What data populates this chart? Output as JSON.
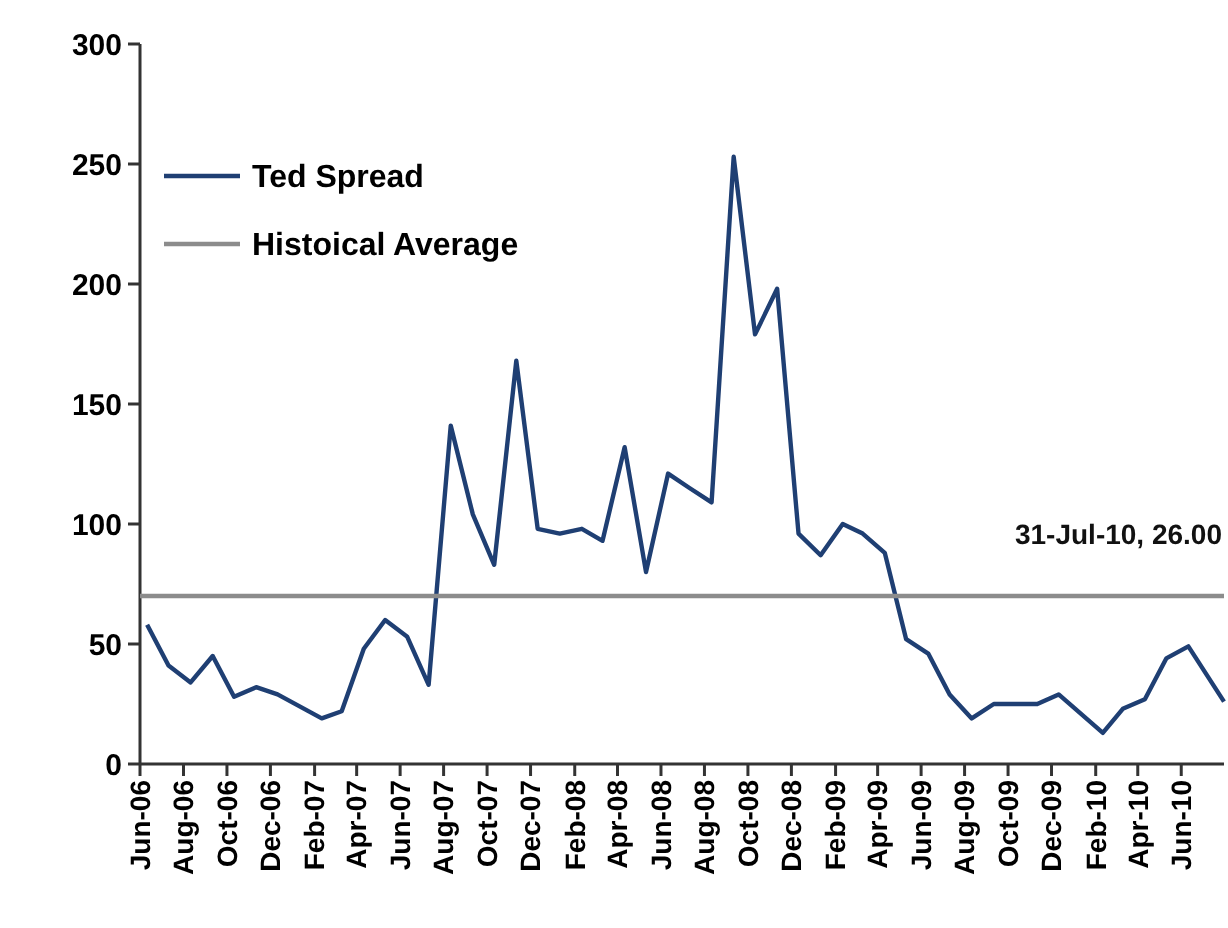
{
  "chart_data": {
    "type": "line",
    "x": [
      "2006-06-11",
      "2006-07-11",
      "2006-08-11",
      "2006-09-11",
      "2006-10-11",
      "2006-11-11",
      "2006-12-11",
      "2007-01-11",
      "2007-02-11",
      "2007-03-11",
      "2007-04-11",
      "2007-05-11",
      "2007-06-11",
      "2007-07-11",
      "2007-08-11",
      "2007-09-11",
      "2007-10-11",
      "2007-11-11",
      "2007-12-11",
      "2008-01-11",
      "2008-02-11",
      "2008-03-11",
      "2008-04-11",
      "2008-05-11",
      "2008-06-11",
      "2008-07-11",
      "2008-08-11",
      "2008-09-11",
      "2008-10-11",
      "2008-11-11",
      "2008-12-11",
      "2009-01-11",
      "2009-02-11",
      "2009-03-11",
      "2009-04-11",
      "2009-05-11",
      "2009-06-11",
      "2009-07-11",
      "2009-08-11",
      "2009-09-11",
      "2009-10-11",
      "2009-11-11",
      "2009-12-11",
      "2010-01-11",
      "2010-02-11",
      "2010-03-11",
      "2010-04-11",
      "2010-05-11",
      "2010-06-11",
      "2010-07-31"
    ],
    "series": [
      {
        "name": "Ted Spread",
        "color": "#1f3f73",
        "values": [
          58,
          41,
          34,
          45,
          28,
          32,
          29,
          24,
          19,
          22,
          48,
          60,
          53,
          33,
          141,
          104,
          83,
          168,
          98,
          96,
          98,
          93,
          132,
          80,
          121,
          115,
          109,
          253,
          179,
          198,
          96,
          87,
          100,
          96,
          88,
          52,
          46,
          29,
          19,
          25,
          25,
          25,
          29,
          21,
          13,
          23,
          27,
          44,
          49,
          26
        ]
      },
      {
        "name": "Histoical Average",
        "color": "#8c8c8c",
        "x": [
          "2006-06-01",
          "2010-07-31"
        ],
        "values": [
          70,
          70
        ]
      }
    ],
    "annotations": [
      "31-Jul-10, 26.00"
    ],
    "xlim": [
      "2006-06-01",
      "2010-07-31"
    ],
    "xticks": [
      {
        "value": "2006-06-01",
        "label": "Jun-06"
      },
      {
        "value": "2006-08-01",
        "label": "Aug-06"
      },
      {
        "value": "2006-10-01",
        "label": "Oct-06"
      },
      {
        "value": "2006-12-01",
        "label": "Dec-06"
      },
      {
        "value": "2007-02-01",
        "label": "Feb-07"
      },
      {
        "value": "2007-04-01",
        "label": "Apr-07"
      },
      {
        "value": "2007-06-01",
        "label": "Jun-07"
      },
      {
        "value": "2007-08-01",
        "label": "Aug-07"
      },
      {
        "value": "2007-10-01",
        "label": "Oct-07"
      },
      {
        "value": "2007-12-01",
        "label": "Dec-07"
      },
      {
        "value": "2008-02-01",
        "label": "Feb-08"
      },
      {
        "value": "2008-04-01",
        "label": "Apr-08"
      },
      {
        "value": "2008-06-01",
        "label": "Jun-08"
      },
      {
        "value": "2008-08-01",
        "label": "Aug-08"
      },
      {
        "value": "2008-10-01",
        "label": "Oct-08"
      },
      {
        "value": "2008-12-01",
        "label": "Dec-08"
      },
      {
        "value": "2009-02-01",
        "label": "Feb-09"
      },
      {
        "value": "2009-04-01",
        "label": "Apr-09"
      },
      {
        "value": "2009-06-01",
        "label": "Jun-09"
      },
      {
        "value": "2009-08-01",
        "label": "Aug-09"
      },
      {
        "value": "2009-10-01",
        "label": "Oct-09"
      },
      {
        "value": "2009-12-01",
        "label": "Dec-09"
      },
      {
        "value": "2010-02-01",
        "label": "Feb-10"
      },
      {
        "value": "2010-04-01",
        "label": "Apr-10"
      },
      {
        "value": "2010-06-01",
        "label": "Jun-10"
      }
    ],
    "ylim": [
      0,
      300
    ],
    "yticks": [
      0,
      50,
      100,
      150,
      200,
      250,
      300
    ],
    "grid": false,
    "legend": "top left",
    "marker": "none",
    "line_style": "solid"
  }
}
